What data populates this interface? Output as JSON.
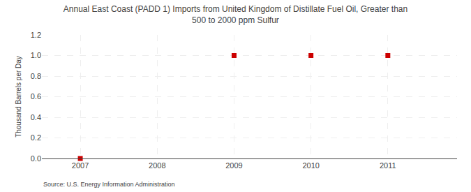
{
  "chart_data": {
    "type": "scatter",
    "title": "Annual East Coast (PADD 1) Imports from United Kingdom of Distillate Fuel Oil, Greater than\n500 to 2000 ppm Sulfur",
    "ylabel": "Thousand Barrels per Day",
    "source": "Source: U.S. Energy Information Administration",
    "x": [
      2007,
      2009,
      2010,
      2011
    ],
    "values": [
      0.0,
      1.0,
      1.0,
      1.0
    ],
    "color": "#cc0000",
    "marker": "square",
    "xlim": [
      2006.5,
      2011.9
    ],
    "xticks": [
      2007,
      2008,
      2009,
      2010,
      2011
    ],
    "ylim": [
      0,
      1.2
    ],
    "yticks": [
      {
        "value": 0.0,
        "label": "0.0"
      },
      0.2,
      0.4,
      0.6,
      0.8,
      {
        "value": 1.0,
        "label": "1.0"
      },
      1.2
    ],
    "grid": true
  }
}
